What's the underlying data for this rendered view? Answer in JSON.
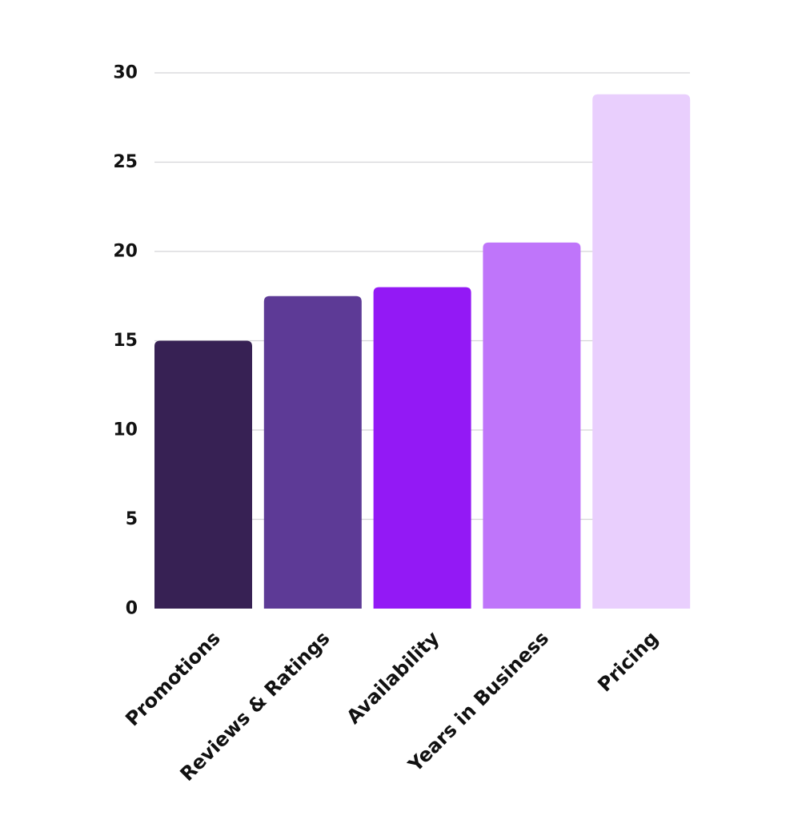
{
  "chart_data": {
    "type": "bar",
    "title": "",
    "xlabel": "",
    "ylabel": "",
    "categories": [
      "Promotions",
      "Reviews & Ratings",
      "Availability",
      "Years in Business",
      "Pricing"
    ],
    "values": [
      15,
      17.5,
      18,
      20.5,
      28.8
    ],
    "colors": [
      "#372154",
      "#5d3a96",
      "#9319f5",
      "#bf75fa",
      "#e9cffd"
    ],
    "ylim": [
      0,
      30
    ],
    "yticks": [
      0,
      5,
      10,
      15,
      20,
      25,
      30
    ],
    "ytick_labels": [
      "0",
      "5",
      "10",
      "15",
      "20",
      "25",
      "30"
    ],
    "grid": true,
    "legend": "none"
  }
}
